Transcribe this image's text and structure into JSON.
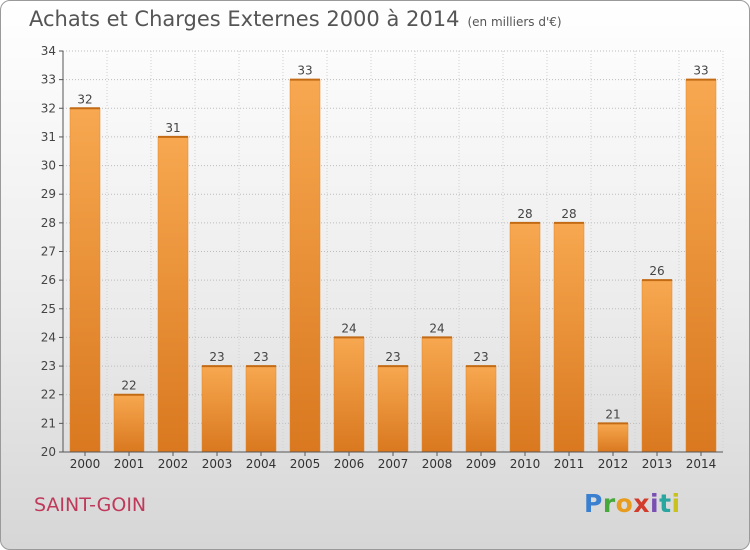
{
  "title": "Achats et Charges Externes 2000 à 2014",
  "unit_note": "(en milliers d'€)",
  "town": "SAINT-GOIN",
  "logo": {
    "text": "Proxiti"
  },
  "colors": {
    "bar_light": "#f7a850",
    "bar_dark": "#d9781f",
    "title": "#555555",
    "town": "#c0395a"
  },
  "chart_data": {
    "type": "bar",
    "categories": [
      "2000",
      "2001",
      "2002",
      "2003",
      "2004",
      "2005",
      "2006",
      "2007",
      "2008",
      "2009",
      "2010",
      "2011",
      "2012",
      "2013",
      "2014"
    ],
    "values": [
      32,
      22,
      31,
      23,
      23,
      33,
      24,
      23,
      24,
      23,
      28,
      28,
      21,
      26,
      33
    ],
    "ylim": [
      20,
      34
    ],
    "yticks": [
      20,
      21,
      22,
      23,
      24,
      25,
      26,
      27,
      28,
      29,
      30,
      31,
      32,
      33,
      34
    ],
    "grid": true,
    "data_labels": true
  }
}
